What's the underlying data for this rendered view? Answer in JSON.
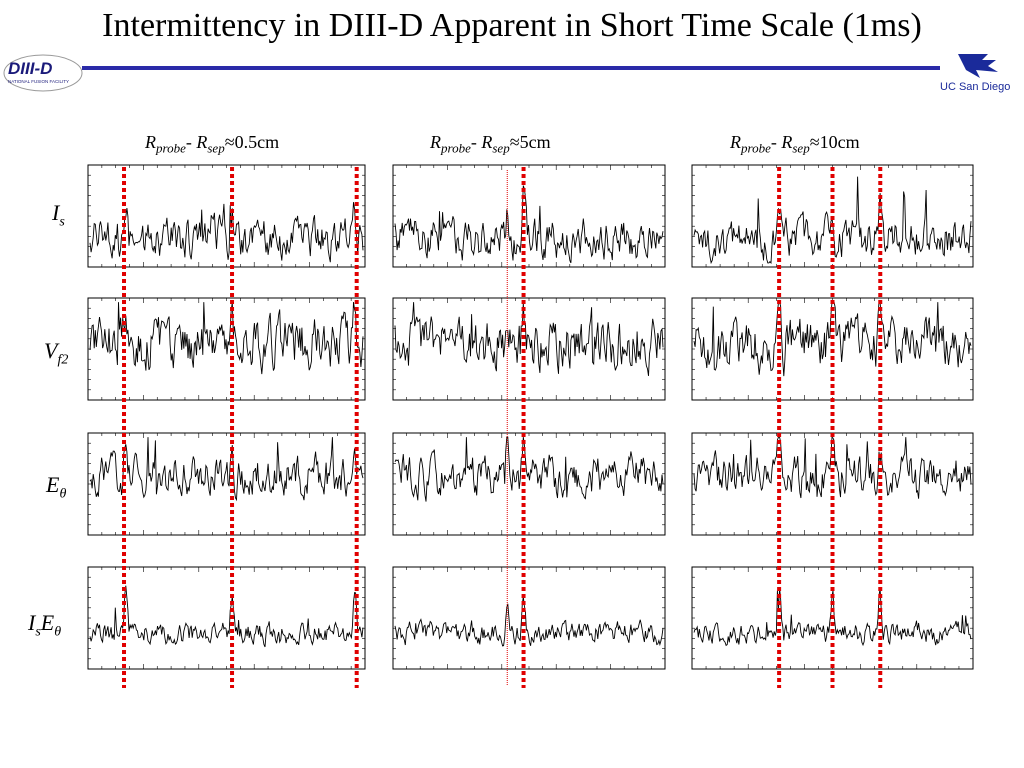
{
  "title": "Intermittency in DIII-D Apparent in Short Time Scale (1ms)",
  "logos": {
    "left": {
      "name": "DIII-D",
      "subtitle": "NATIONAL FUSION FACILITY"
    },
    "right": {
      "name": "UC San Diego"
    }
  },
  "columns": [
    {
      "symbol_left": "R",
      "sub_left": "probe",
      "dash": "- ",
      "symbol_right": "R",
      "sub_right": "sep",
      "approx": "≈",
      "value": "0.5cm"
    },
    {
      "symbol_left": "R",
      "sub_left": "probe",
      "dash": "- ",
      "symbol_right": "R",
      "sub_right": "sep",
      "approx": "≈",
      "value": "5cm"
    },
    {
      "symbol_left": "R",
      "sub_left": "probe",
      "dash": "- ",
      "symbol_right": "R",
      "sub_right": "sep",
      "approx": "≈",
      "value": "10cm"
    }
  ],
  "rows": [
    {
      "main": "I",
      "sub": "s",
      "main2": "",
      "sub2": ""
    },
    {
      "main": "V",
      "sub": "f2",
      "main2": "",
      "sub2": ""
    },
    {
      "main": "E",
      "sub": "θ",
      "main2": "",
      "sub2": ""
    },
    {
      "main": "I",
      "sub": "s",
      "main2": "E",
      "sub2": "θ"
    }
  ],
  "chart_data": {
    "type": "line",
    "panels_per_column": 4,
    "columns": 3,
    "note_on_values": "Traces are schematic; axis tick labels are unreadable at this resolution",
    "burst_markers": {
      "color": "#e00000",
      "style": "dotted",
      "column_1_fraction": [
        0.13,
        0.52,
        0.97
      ],
      "column_2_fraction": [
        0.42,
        0.48
      ],
      "column_3_fraction": [
        0.31,
        0.5,
        0.67
      ]
    },
    "trace_color": "#000000",
    "grid": false
  },
  "colors": {
    "accent_rule": "#2a2aa8",
    "marker": "#e00000",
    "text": "#000000"
  }
}
